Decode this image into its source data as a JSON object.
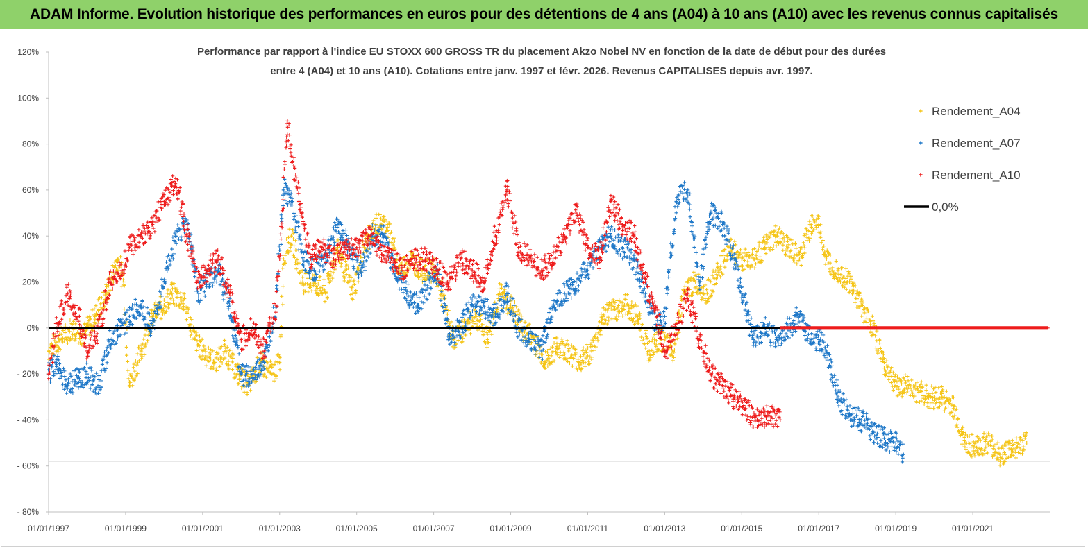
{
  "banner": {
    "title": "ADAM Informe. Evolution historique des performances en euros pour des détentions de 4 ans (A04) à 10 ans (A10) avec les revenus connus capitalisés"
  },
  "chart_data": {
    "type": "scatter",
    "title_line1": "Performance par rapport à l'indice EU STOXX 600 GROSS TR  du placement Akzo Nobel NV en fonction de la date de début pour des durées",
    "title_line2": "entre 4 (A04) et 10 ans (A10).  Cotations entre janv. 1997 et févr. 2026. Revenus CAPITALISES depuis avr. 1997.",
    "xlabel": "",
    "ylabel": "",
    "ylim": [
      -80,
      120
    ],
    "xlim": [
      1997.0,
      2023.0
    ],
    "y_ticks": [
      {
        "v": 120,
        "label": "120%"
      },
      {
        "v": 100,
        "label": "100%"
      },
      {
        "v": 80,
        "label": "80%"
      },
      {
        "v": 60,
        "label": "60%"
      },
      {
        "v": 40,
        "label": "40%"
      },
      {
        "v": 20,
        "label": "20%"
      },
      {
        "v": 0,
        "label": "0%"
      },
      {
        "v": -20,
        "label": "- 20%"
      },
      {
        "v": -40,
        "label": "- 40%"
      },
      {
        "v": -60,
        "label": "- 60%"
      },
      {
        "v": -80,
        "label": "- 80%"
      }
    ],
    "x_ticks": [
      {
        "v": 1997,
        "label": "01/01/1997"
      },
      {
        "v": 1999,
        "label": "01/01/1999"
      },
      {
        "v": 2001,
        "label": "01/01/2001"
      },
      {
        "v": 2003,
        "label": "01/01/2003"
      },
      {
        "v": 2005,
        "label": "01/01/2005"
      },
      {
        "v": 2007,
        "label": "01/01/2007"
      },
      {
        "v": 2009,
        "label": "01/01/2009"
      },
      {
        "v": 2011,
        "label": "01/01/2011"
      },
      {
        "v": 2013,
        "label": "01/01/2013"
      },
      {
        "v": 2015,
        "label": "01/01/2015"
      },
      {
        "v": 2017,
        "label": "01/01/2017"
      },
      {
        "v": 2019,
        "label": "01/01/2019"
      },
      {
        "v": 2021,
        "label": "01/01/2021"
      }
    ],
    "legend_position": "top-right",
    "series": [
      {
        "name": "Rendement_A04",
        "color": "#f5c518",
        "x": [
          1997.0,
          1997.3,
          1997.6,
          1997.9,
          1998.2,
          1998.5,
          1998.8,
          1998.95,
          1999.1,
          1999.4,
          1999.7,
          2000.0,
          2000.2,
          2000.5,
          2000.8,
          2001.0,
          2001.3,
          2001.6,
          2001.9,
          2002.2,
          2002.5,
          2002.8,
          2003.0,
          2003.1,
          2003.3,
          2003.6,
          2003.9,
          2004.2,
          2004.5,
          2004.7,
          2004.9,
          2005.2,
          2005.5,
          2005.8,
          2006.1,
          2006.4,
          2006.7,
          2007.0,
          2007.2,
          2007.5,
          2007.8,
          2008.1,
          2008.4,
          2008.7,
          2009.0,
          2009.3,
          2009.6,
          2009.9,
          2010.2,
          2010.5,
          2010.8,
          2011.1,
          2011.4,
          2011.7,
          2012.0,
          2012.3,
          2012.6,
          2012.9,
          2013.2,
          2013.5,
          2013.8,
          2014.1,
          2014.4,
          2014.7,
          2015.0,
          2015.3,
          2015.6,
          2015.9,
          2016.2,
          2016.5,
          2016.8,
          2017.0,
          2017.2,
          2017.5,
          2017.8,
          2018.1,
          2018.4,
          2018.7,
          2019.0,
          2019.3,
          2019.6,
          2019.9,
          2020.2,
          2020.5,
          2020.8,
          2021.1,
          2021.4,
          2021.7,
          2022.0,
          2022.2,
          2022.4
        ],
        "y": [
          -10,
          -5,
          0,
          -3,
          5,
          15,
          30,
          20,
          -25,
          -10,
          5,
          10,
          15,
          12,
          -5,
          -10,
          -15,
          -10,
          -20,
          -25,
          -15,
          -20,
          -15,
          30,
          40,
          20,
          20,
          15,
          35,
          25,
          15,
          35,
          45,
          45,
          25,
          30,
          25,
          25,
          15,
          -5,
          0,
          5,
          -5,
          15,
          10,
          0,
          -5,
          -15,
          -8,
          -10,
          -15,
          -10,
          5,
          8,
          10,
          5,
          -10,
          -5,
          -10,
          15,
          20,
          15,
          25,
          35,
          30,
          30,
          35,
          40,
          35,
          30,
          45,
          45,
          30,
          25,
          20,
          10,
          0,
          -15,
          -25,
          -25,
          -28,
          -30,
          -30,
          -35,
          -50,
          -52,
          -50,
          -55,
          -53,
          -52,
          -50
        ]
      },
      {
        "name": "Rendement_A07",
        "color": "#1f78c8",
        "x": [
          1997.0,
          1997.2,
          1997.5,
          1997.8,
          1998.0,
          1998.3,
          1998.6,
          1998.9,
          1999.1,
          1999.4,
          1999.7,
          2000.0,
          2000.3,
          2000.6,
          2000.9,
          2001.1,
          2001.4,
          2001.7,
          2002.0,
          2002.3,
          2002.6,
          2002.9,
          2003.1,
          2003.3,
          2003.6,
          2003.9,
          2004.2,
          2004.5,
          2004.8,
          2005.1,
          2005.4,
          2005.7,
          2006.0,
          2006.3,
          2006.6,
          2006.9,
          2007.1,
          2007.4,
          2007.7,
          2008.0,
          2008.3,
          2008.6,
          2008.9,
          2009.2,
          2009.5,
          2009.8,
          2010.1,
          2010.4,
          2010.7,
          2011.0,
          2011.3,
          2011.6,
          2011.9,
          2012.2,
          2012.5,
          2012.8,
          2013.0,
          2013.3,
          2013.6,
          2013.9,
          2014.2,
          2014.5,
          2014.8,
          2015.0,
          2015.3,
          2015.6,
          2015.9,
          2016.2,
          2016.5,
          2016.8,
          2017.0,
          2017.2,
          2017.5,
          2017.8,
          2018.1,
          2018.4,
          2018.7,
          2019.0,
          2019.2
        ],
        "y": [
          -20,
          -15,
          -25,
          -22,
          -20,
          -25,
          -5,
          0,
          5,
          10,
          0,
          20,
          40,
          45,
          15,
          20,
          25,
          10,
          -20,
          -22,
          -15,
          10,
          60,
          55,
          30,
          25,
          30,
          45,
          35,
          25,
          40,
          40,
          25,
          15,
          10,
          20,
          25,
          -5,
          0,
          10,
          10,
          5,
          15,
          0,
          -5,
          -10,
          10,
          15,
          20,
          25,
          35,
          40,
          35,
          30,
          15,
          0,
          5,
          55,
          60,
          20,
          50,
          45,
          30,
          15,
          -5,
          0,
          -5,
          0,
          5,
          -5,
          -5,
          -10,
          -30,
          -38,
          -40,
          -45,
          -48,
          -50,
          -55
        ]
      },
      {
        "name": "Rendement_A10",
        "color": "#ee1c1c",
        "x": [
          1997.0,
          1997.2,
          1997.5,
          1997.8,
          1998.0,
          1998.3,
          1998.6,
          1998.9,
          1999.1,
          1999.4,
          1999.7,
          2000.0,
          2000.3,
          2000.6,
          2000.9,
          2001.1,
          2001.4,
          2001.7,
          2002.0,
          2002.3,
          2002.6,
          2002.9,
          2003.0,
          2003.2,
          2003.5,
          2003.8,
          2004.1,
          2004.4,
          2004.7,
          2005.0,
          2005.3,
          2005.6,
          2005.9,
          2006.2,
          2006.5,
          2006.8,
          2007.1,
          2007.4,
          2007.7,
          2008.0,
          2008.3,
          2008.6,
          2008.9,
          2009.2,
          2009.5,
          2009.8,
          2010.1,
          2010.4,
          2010.7,
          2011.0,
          2011.3,
          2011.6,
          2011.9,
          2012.2,
          2012.5,
          2012.8,
          2013.0,
          2013.3,
          2013.6,
          2013.9,
          2014.2,
          2014.5,
          2014.8,
          2015.1,
          2015.4,
          2015.7,
          2016.0
        ],
        "y": [
          -20,
          0,
          15,
          5,
          -10,
          0,
          20,
          25,
          35,
          40,
          45,
          55,
          65,
          40,
          20,
          25,
          30,
          15,
          -5,
          0,
          -10,
          10,
          30,
          90,
          55,
          30,
          35,
          30,
          35,
          35,
          40,
          35,
          30,
          25,
          30,
          30,
          25,
          20,
          30,
          25,
          20,
          40,
          60,
          35,
          30,
          25,
          30,
          40,
          50,
          35,
          30,
          55,
          45,
          40,
          20,
          5,
          -10,
          0,
          15,
          -5,
          -20,
          -25,
          -30,
          -35,
          -40,
          -38,
          -40
        ]
      },
      {
        "name": "0,0%",
        "color": "#000000",
        "x": [
          1997.0,
          2023.0
        ],
        "y": [
          0,
          0
        ]
      }
    ]
  }
}
